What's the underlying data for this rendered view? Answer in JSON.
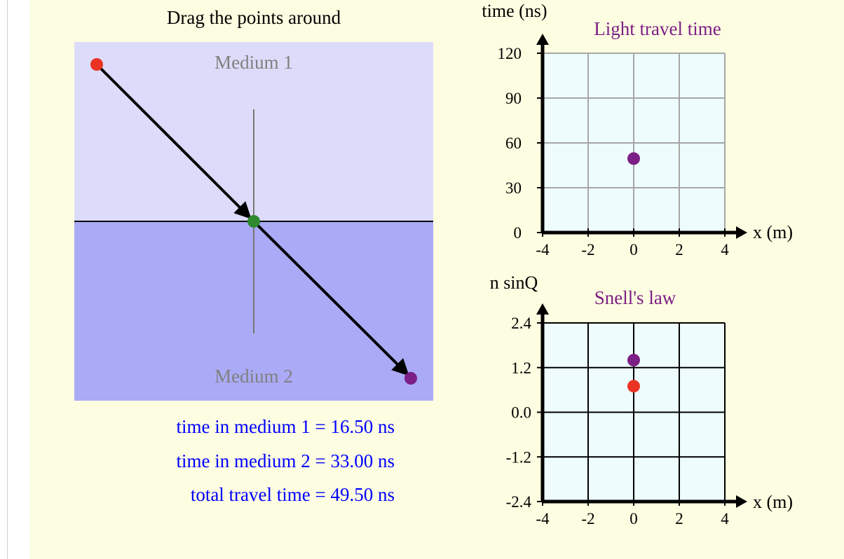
{
  "instruction": "Drag the points around",
  "medium_labels": {
    "top": "Medium 1",
    "bottom": "Medium 2"
  },
  "readouts": {
    "time_medium_1": "time in medium 1 = 16.50 ns",
    "time_medium_2": "time in medium 2 = 33.00 ns",
    "total_time": "total travel time = 49.50 ns"
  },
  "colors": {
    "panel_bg": "#fdfde1",
    "medium_1": "#dcdcfa",
    "medium_2": "#aaaaf6",
    "source_point": "#ea3323",
    "interface_point": "#2f8a2f",
    "end_point": "#7c1f86",
    "readout_text": "#0000ff",
    "plot_title": "#7c1f86",
    "plot_bg": "#eefcfd"
  },
  "chart_data": [
    {
      "type": "scatter",
      "title": "Light travel time",
      "xlabel": "x (m)",
      "ylabel": "time (ns)",
      "xlim": [
        -4,
        4
      ],
      "ylim": [
        0,
        120
      ],
      "x_ticks": [
        "-4",
        "-2",
        "0",
        "2",
        "4"
      ],
      "y_ticks": [
        "0",
        "30",
        "60",
        "90",
        "120"
      ],
      "grid": true,
      "points": [
        {
          "x": 0,
          "y": 49.5,
          "color": "#7c1f86"
        }
      ]
    },
    {
      "type": "scatter",
      "title": "Snell's law",
      "xlabel": "x (m)",
      "ylabel": "n sinQ",
      "xlim": [
        -4,
        4
      ],
      "ylim": [
        -2.4,
        2.4
      ],
      "x_ticks": [
        "-4",
        "-2",
        "0",
        "2",
        "4"
      ],
      "y_ticks": [
        "-2.4",
        "-1.2",
        "0.0",
        "1.2",
        "2.4"
      ],
      "grid": true,
      "points": [
        {
          "x": 0,
          "y": 1.4,
          "color": "#7c1f86"
        },
        {
          "x": 0,
          "y": 0.7,
          "color": "#ea3323"
        }
      ]
    }
  ]
}
